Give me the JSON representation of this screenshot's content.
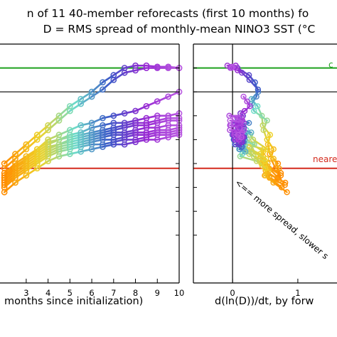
{
  "title_line1": "n of 11 40-member reforecasts (first 10 months) fo",
  "title_line2": "D = RMS spread of monthly-mean NINO3 SST (°C",
  "chart_data": [
    {
      "type": "line",
      "panel": "left",
      "xlabel": "months since initialization)",
      "xlim": [
        1.8,
        10
      ],
      "x_ticks": [
        "3",
        "4",
        "5",
        "6",
        "7",
        "8",
        "9",
        "10"
      ],
      "x_tick_values": [
        3,
        4,
        5,
        6,
        7,
        8,
        9,
        10
      ],
      "ylim": [
        0,
        1
      ],
      "reference_lines": [
        {
          "color": "#1ea01e",
          "y": 0.9
        },
        {
          "color": "#000000",
          "y": 0.8
        },
        {
          "color": "#d42b1e",
          "y": 0.48
        }
      ],
      "x": [
        2,
        2.5,
        3,
        3.5,
        4,
        4.5,
        5,
        5.5,
        6,
        6.5,
        7,
        7.5,
        8,
        8.5,
        9,
        9.5,
        10
      ],
      "series": [
        {
          "values": [
            0.5,
            0.54,
            0.58,
            0.62,
            0.66,
            0.7,
            0.74,
            0.77,
            0.8,
            0.84,
            0.87,
            0.9,
            0.91,
            0.91,
            0.905,
            0.905,
            0.9
          ]
        },
        {
          "values": [
            0.48,
            0.52,
            0.56,
            0.6,
            0.64,
            0.68,
            0.72,
            0.75,
            0.78,
            0.81,
            0.85,
            0.88,
            0.89,
            0.9,
            0.9,
            0.9,
            0.9
          ]
        },
        {
          "values": [
            0.44,
            0.48,
            0.52,
            0.56,
            0.6,
            0.62,
            0.64,
            0.66,
            0.67,
            0.69,
            0.7,
            0.71,
            0.72,
            0.74,
            0.76,
            0.78,
            0.8
          ]
        },
        {
          "values": [
            0.45,
            0.49,
            0.52,
            0.55,
            0.58,
            0.6,
            0.62,
            0.63,
            0.65,
            0.66,
            0.67,
            0.67,
            0.68,
            0.69,
            0.7,
            0.7,
            0.71
          ]
        },
        {
          "values": [
            0.46,
            0.5,
            0.53,
            0.56,
            0.59,
            0.6,
            0.61,
            0.62,
            0.63,
            0.64,
            0.65,
            0.66,
            0.67,
            0.67,
            0.68,
            0.69,
            0.69
          ]
        },
        {
          "values": [
            0.43,
            0.47,
            0.5,
            0.53,
            0.56,
            0.58,
            0.6,
            0.61,
            0.62,
            0.63,
            0.64,
            0.65,
            0.66,
            0.66,
            0.67,
            0.68,
            0.68
          ]
        },
        {
          "values": [
            0.44,
            0.48,
            0.51,
            0.54,
            0.57,
            0.58,
            0.59,
            0.6,
            0.61,
            0.62,
            0.63,
            0.63,
            0.64,
            0.65,
            0.65,
            0.66,
            0.66
          ]
        },
        {
          "values": [
            0.42,
            0.46,
            0.49,
            0.52,
            0.55,
            0.57,
            0.58,
            0.59,
            0.6,
            0.61,
            0.62,
            0.62,
            0.63,
            0.63,
            0.64,
            0.64,
            0.65
          ]
        },
        {
          "values": [
            0.41,
            0.45,
            0.48,
            0.51,
            0.54,
            0.56,
            0.57,
            0.58,
            0.59,
            0.6,
            0.6,
            0.61,
            0.62,
            0.62,
            0.63,
            0.63,
            0.64
          ]
        },
        {
          "values": [
            0.4,
            0.44,
            0.47,
            0.5,
            0.53,
            0.55,
            0.56,
            0.57,
            0.58,
            0.58,
            0.59,
            0.6,
            0.6,
            0.61,
            0.62,
            0.62,
            0.63
          ]
        },
        {
          "values": [
            0.38,
            0.42,
            0.45,
            0.48,
            0.51,
            0.53,
            0.54,
            0.55,
            0.56,
            0.57,
            0.58,
            0.58,
            0.59,
            0.6,
            0.6,
            0.61,
            0.62
          ]
        }
      ]
    },
    {
      "type": "scatter",
      "panel": "right",
      "xlabel": "d(ln(D))/dt, by forw",
      "xlim": [
        -0.6,
        1.6
      ],
      "x_ticks": [
        "0",
        "1"
      ],
      "x_tick_values": [
        0,
        1
      ],
      "ylim": [
        0,
        1
      ],
      "reference_lines": [
        {
          "color": "#1ea01e",
          "y": 0.9,
          "label": "c"
        },
        {
          "color": "#000000",
          "y": 0.8
        },
        {
          "color": "#d42b1e",
          "y": 0.48,
          "label": "neare"
        }
      ],
      "vertical_lines": [
        {
          "color": "#000000",
          "x": 0
        }
      ],
      "annotation": "<== more spread, slower s"
    }
  ]
}
